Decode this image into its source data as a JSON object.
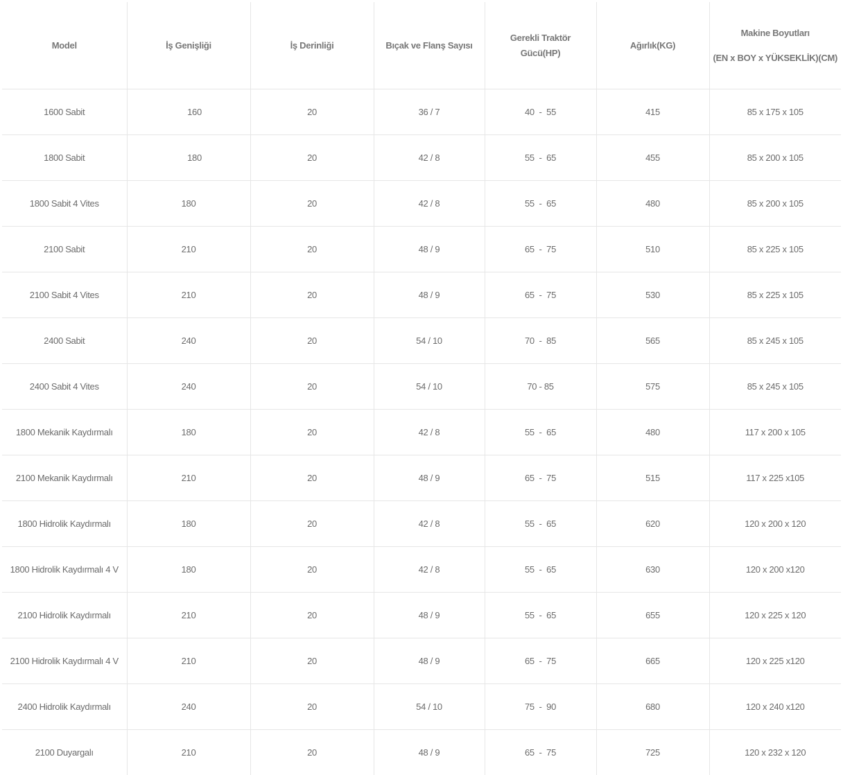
{
  "table": {
    "headers": [
      "Model",
      "İş Genişliği",
      "İş Derinliği",
      "Bıçak ve Flanş Sayısı",
      "Gerekli Traktör Gücü(HP)",
      "Ağırlık(KG)",
      "Makine Boyutları"
    ],
    "header_sub": "(EN x BOY x YÜKSEKLİK)(CM)",
    "rows": [
      [
        "1600 Sabit",
        "160",
        "20",
        "36 / 7",
        "40  -  55",
        "415",
        "85 x 175 x 105"
      ],
      [
        "1800 Sabit",
        "180",
        "20",
        "42 / 8",
        "55  -  65",
        "455",
        "85 x 200 x 105"
      ],
      [
        "1800 Sabit 4 Vites",
        "180",
        "20",
        "42 / 8",
        "55  -  65",
        "480",
        "85 x 200 x 105"
      ],
      [
        "2100 Sabit",
        "210",
        "20",
        "48 / 9",
        "65  -  75",
        "510",
        "85 x 225 x 105"
      ],
      [
        "2100 Sabit 4 Vites",
        "210",
        "20",
        "48 / 9",
        "65  -  75",
        "530",
        "85 x 225 x 105"
      ],
      [
        "2400 Sabit",
        "240",
        "20",
        "54 / 10",
        "70  -  85",
        "565",
        "85 x 245 x 105"
      ],
      [
        "2400 Sabit 4 Vites",
        "240",
        "20",
        "54 / 10",
        "70 - 85",
        "575",
        "85 x 245 x 105"
      ],
      [
        "1800 Mekanik Kaydırmalı",
        "180",
        "20",
        "42 / 8",
        "55  -  65",
        "480",
        "117 x 200 x 105"
      ],
      [
        "2100 Mekanik Kaydırmalı",
        "210",
        "20",
        "48 / 9",
        "65  -  75",
        "515",
        "117 x 225 x105"
      ],
      [
        "1800 Hidrolik Kaydırmalı",
        "180",
        "20",
        "42 / 8",
        "55  -  65",
        "620",
        "120 x 200 x 120"
      ],
      [
        "1800 Hidrolik Kaydırmalı 4 V",
        "180",
        "20",
        "42 / 8",
        "55  -  65",
        "630",
        "120 x 200 x120"
      ],
      [
        "2100 Hidrolik Kaydırmalı",
        "210",
        "20",
        "48 / 9",
        "55  -  65",
        "655",
        "120 x 225 x 120"
      ],
      [
        "2100 Hidrolik Kaydırmalı 4 V",
        "210",
        "20",
        "48 / 9",
        "65  -  75",
        "665",
        "120 x 225 x120"
      ],
      [
        "2400 Hidrolik Kaydırmalı",
        "240",
        "20",
        "54 / 10",
        "75  -  90",
        "680",
        "120 x 240 x120"
      ],
      [
        "2100 Duyargalı",
        "210",
        "20",
        "48 / 9",
        "65  -  75",
        "725",
        "120 x 232 x 120"
      ]
    ]
  }
}
